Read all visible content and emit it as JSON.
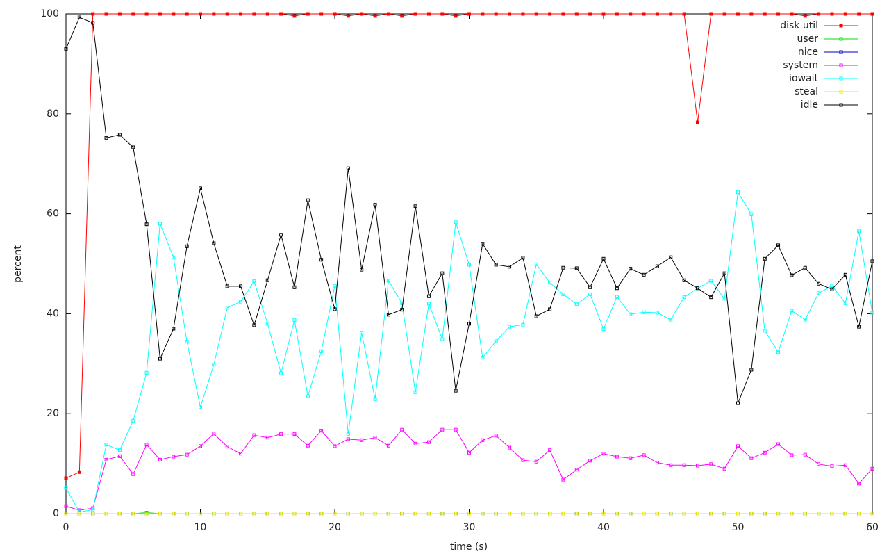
{
  "chart_data": {
    "type": "line",
    "xlabel": "time (s)",
    "ylabel": "percent",
    "xlim": [
      0,
      60
    ],
    "xticks": [
      0,
      10,
      20,
      30,
      40,
      50,
      60
    ],
    "ylim": [
      0,
      100
    ],
    "yticks": [
      0,
      20,
      40,
      60,
      80,
      100
    ],
    "legend": "top-right",
    "x": [
      0,
      1,
      2,
      3,
      4,
      5,
      6,
      7,
      8,
      9,
      10,
      11,
      12,
      13,
      14,
      15,
      16,
      17,
      18,
      19,
      20,
      21,
      22,
      23,
      24,
      25,
      26,
      27,
      28,
      29,
      30,
      31,
      32,
      33,
      34,
      35,
      36,
      37,
      38,
      39,
      40,
      41,
      42,
      43,
      44,
      45,
      46,
      47,
      48,
      49,
      50,
      51,
      52,
      53,
      54,
      55,
      56,
      57,
      58,
      59,
      60
    ],
    "series": [
      {
        "name": "disk util",
        "color": "#ff0000",
        "values": [
          7.1,
          8.3,
          100,
          100,
          100,
          100,
          100,
          100,
          100,
          100,
          100,
          100,
          100,
          100,
          100,
          100,
          100,
          99.6,
          100,
          100,
          100,
          99.6,
          100,
          99.6,
          100,
          99.6,
          100,
          100,
          100,
          99.6,
          100,
          100,
          100,
          100,
          100,
          100,
          100,
          100,
          100,
          100,
          100,
          100,
          100,
          100,
          100,
          100,
          100,
          78.3,
          100,
          100,
          100,
          100,
          100,
          100,
          100,
          99.6,
          100,
          100,
          100,
          100,
          100
        ]
      },
      {
        "name": "user",
        "color": "#00dd00",
        "values": [
          0,
          0,
          0,
          0,
          0,
          0,
          0.2,
          0,
          0,
          0,
          0,
          0,
          0,
          0,
          0,
          0,
          0,
          0,
          0,
          0,
          0,
          0,
          0,
          0,
          0,
          0,
          0,
          0,
          0,
          0,
          0,
          0,
          0,
          0,
          0,
          0,
          0,
          0,
          0,
          0,
          0,
          0,
          0,
          0,
          0,
          0,
          0,
          0,
          0,
          0,
          0,
          0,
          0,
          0,
          0,
          0,
          0,
          0,
          0,
          0,
          0
        ]
      },
      {
        "name": "nice",
        "color": "#0000c0",
        "values": [
          0,
          0,
          0,
          0,
          0,
          0,
          0,
          0,
          0,
          0,
          0,
          0,
          0,
          0,
          0,
          0,
          0,
          0,
          0,
          0,
          0,
          0,
          0,
          0,
          0,
          0,
          0,
          0,
          0,
          0,
          0,
          0,
          0,
          0,
          0,
          0,
          0,
          0,
          0,
          0,
          0,
          0,
          0,
          0,
          0,
          0,
          0,
          0,
          0,
          0,
          0,
          0,
          0,
          0,
          0,
          0,
          0,
          0,
          0,
          0,
          0
        ]
      },
      {
        "name": "system",
        "color": "#ff00ff",
        "values": [
          1.5,
          0.7,
          1.1,
          10.8,
          11.5,
          7.9,
          13.8,
          10.8,
          11.4,
          11.8,
          13.5,
          16.0,
          13.4,
          12.0,
          15.7,
          15.2,
          15.9,
          15.9,
          13.6,
          16.6,
          13.5,
          14.9,
          14.7,
          15.2,
          13.6,
          16.8,
          14.0,
          14.3,
          16.8,
          16.8,
          12.2,
          14.7,
          15.6,
          13.2,
          10.7,
          10.4,
          12.7,
          6.8,
          8.8,
          10.6,
          12.0,
          11.4,
          11.1,
          11.7,
          10.2,
          9.7,
          9.7,
          9.6,
          9.9,
          9.0,
          13.5,
          11.1,
          12.2,
          13.9,
          11.7,
          11.8,
          9.9,
          9.5,
          9.7,
          6.0,
          9.0
        ]
      },
      {
        "name": "iowait",
        "color": "#00ffff",
        "values": [
          5.1,
          0.3,
          0.8,
          13.8,
          12.7,
          18.6,
          28.2,
          58.0,
          51.3,
          34.4,
          21.3,
          29.8,
          41.2,
          42.4,
          46.5,
          38.0,
          28.1,
          38.7,
          23.5,
          32.5,
          45.6,
          15.9,
          36.2,
          22.9,
          46.6,
          42.1,
          24.3,
          42.0,
          34.9,
          58.3,
          49.8,
          31.2,
          34.5,
          37.4,
          37.8,
          49.9,
          46.2,
          43.9,
          41.9,
          43.9,
          36.9,
          43.4,
          39.9,
          40.3,
          40.2,
          38.8,
          43.3,
          45.1,
          46.6,
          43.0,
          64.3,
          59.9,
          36.6,
          32.3,
          40.6,
          38.8,
          44.1,
          45.6,
          42.1,
          56.5,
          40.2
        ]
      },
      {
        "name": "steal",
        "color": "#e8e800",
        "values": [
          0,
          0,
          0,
          0,
          0,
          0,
          0,
          0,
          0,
          0,
          0,
          0,
          0,
          0,
          0,
          0,
          0,
          0,
          0,
          0,
          0,
          0,
          0,
          0,
          0,
          0,
          0,
          0,
          0,
          0,
          0,
          0,
          0,
          0,
          0,
          0,
          0,
          0,
          0,
          0,
          0,
          0,
          0,
          0,
          0,
          0,
          0,
          0,
          0,
          0,
          0,
          0,
          0,
          0,
          0,
          0,
          0,
          0,
          0,
          0,
          0
        ]
      },
      {
        "name": "idle",
        "color": "#000000",
        "values": [
          93.0,
          99.3,
          98.2,
          75.2,
          75.8,
          73.3,
          57.9,
          31.0,
          37.0,
          53.5,
          65.1,
          54.1,
          45.5,
          45.5,
          37.7,
          46.7,
          55.8,
          45.3,
          62.7,
          50.8,
          40.9,
          69.1,
          48.8,
          61.8,
          39.8,
          40.8,
          61.5,
          43.5,
          48.1,
          24.6,
          38.0,
          54.0,
          49.8,
          49.4,
          51.2,
          39.5,
          40.9,
          49.2,
          49.1,
          45.3,
          51.0,
          45.1,
          49.0,
          47.8,
          49.5,
          51.3,
          46.7,
          45.1,
          43.3,
          48.1,
          22.1,
          28.8,
          51.0,
          53.7,
          47.7,
          49.2,
          46.0,
          44.9,
          47.8,
          37.4,
          50.5
        ]
      }
    ]
  }
}
